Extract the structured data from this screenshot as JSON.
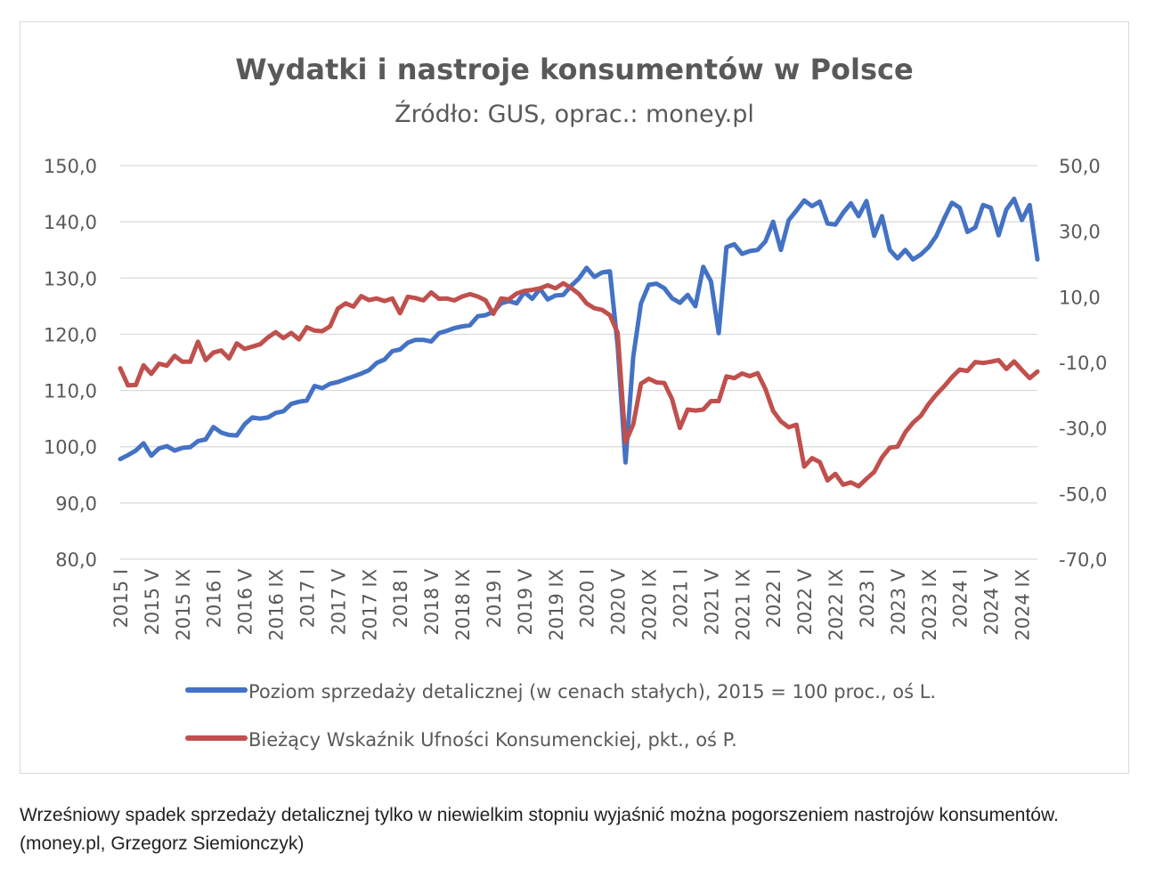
{
  "caption": "Wrześniowy spadek sprzedaży detalicznej tylko w niewielkim stopniu wyjaśnić można pogorszeniem nastrojów konsumentów. (money.pl, Grzegorz Siemionczyk)",
  "chart_data": {
    "type": "line",
    "title": "Wydatki i nastroje konsumentów w Polsce",
    "subtitle": "Źródło: GUS, oprac.: money.pl",
    "x_ticks": [
      "2015 I",
      "2015 V",
      "2015 IX",
      "2016 I",
      "2016 V",
      "2016 IX",
      "2017 I",
      "2017 V",
      "2017 IX",
      "2018 I",
      "2018 V",
      "2018 IX",
      "2019 I",
      "2019 V",
      "2019 IX",
      "2020 I",
      "2020 V",
      "2020 IX",
      "2021 I",
      "2021 V",
      "2021 IX",
      "2022 I",
      "2022 V",
      "2022 IX",
      "2023 I",
      "2023 V",
      "2023 IX",
      "2024 I",
      "2024 V",
      "2024 IX"
    ],
    "y_left": {
      "ticks": [
        "150,0",
        "140,0",
        "130,0",
        "120,0",
        "110,0",
        "100,0",
        "90,0",
        "80,0"
      ],
      "range": [
        80,
        150
      ]
    },
    "y_right": {
      "ticks": [
        "50,0",
        "30,0",
        "10,0",
        "-10,0",
        "-30,0",
        "-50,0",
        "-70,0"
      ],
      "range": [
        -70,
        50
      ]
    },
    "grid": true,
    "legend_position": "bottom",
    "series": [
      {
        "name": "Poziom sprzedaży detalicznej (w cenach stałych), 2015 = 100 proc., oś L.",
        "axis": "left",
        "color": "#4472c4",
        "values": [
          97.8,
          98.5,
          99.3,
          100.6,
          98.4,
          99.7,
          100.1,
          99.3,
          99.8,
          99.9,
          101.0,
          101.3,
          103.5,
          102.5,
          102.1,
          102.0,
          104.0,
          105.2,
          105.0,
          105.2,
          106.0,
          106.3,
          107.6,
          108.0,
          108.2,
          110.8,
          110.4,
          111.2,
          111.5,
          112.0,
          112.5,
          113.0,
          113.6,
          114.9,
          115.5,
          117.0,
          117.3,
          118.5,
          119.0,
          119.0,
          118.7,
          120.2,
          120.6,
          121.1,
          121.4,
          121.6,
          123.2,
          123.4,
          124.0,
          125.5,
          125.9,
          125.5,
          127.5,
          126.3,
          128.1,
          126.2,
          126.9,
          127.0,
          128.6,
          129.9,
          131.8,
          130.2,
          131.0,
          131.2,
          118.0,
          97.2,
          116.0,
          125.5,
          128.8,
          129.0,
          128.2,
          126.4,
          125.6,
          127.0,
          125.0,
          132.0,
          129.4,
          120.2,
          135.5,
          136.0,
          134.3,
          134.8,
          135.0,
          136.5,
          140.0,
          135.0,
          140.3,
          142.0,
          143.8,
          142.8,
          143.6,
          139.7,
          139.5,
          141.6,
          143.3,
          141.0,
          143.7,
          137.5,
          141.0,
          135.0,
          133.5,
          135.0,
          133.3,
          134.2,
          135.5,
          137.5,
          140.6,
          143.4,
          142.5,
          138.2,
          139.0,
          143.0,
          142.5,
          137.6,
          142.2,
          144.1,
          140.3,
          143.0,
          133.3
        ]
      },
      {
        "name": "Bieżący Wskaźnik Ufności Konsumenckiej, pkt., oś P.",
        "axis": "right",
        "color": "#c0504d",
        "values": [
          -11.8,
          -17.0,
          -16.9,
          -10.9,
          -13.5,
          -10.4,
          -11.0,
          -8.0,
          -9.8,
          -9.8,
          -3.7,
          -9.3,
          -7.0,
          -6.4,
          -8.8,
          -4.2,
          -5.9,
          -5.2,
          -4.5,
          -2.4,
          -0.8,
          -2.6,
          -1.0,
          -3.0,
          0.7,
          -0.3,
          -0.5,
          1.0,
          6.4,
          8.0,
          7.0,
          10.2,
          9.0,
          9.5,
          8.7,
          9.5,
          5.0,
          10.0,
          9.6,
          8.9,
          11.3,
          9.4,
          9.5,
          8.9,
          10.1,
          10.8,
          10.1,
          8.9,
          4.8,
          9.5,
          9.2,
          11.0,
          11.8,
          12.1,
          12.6,
          13.5,
          12.6,
          14.1,
          12.7,
          10.9,
          8.0,
          6.5,
          6.0,
          4.4,
          -1.0,
          -34.4,
          -28.9,
          -16.5,
          -15.0,
          -16.1,
          -16.3,
          -21.2,
          -30.0,
          -24.4,
          -24.7,
          -24.4,
          -21.8,
          -21.8,
          -14.3,
          -14.8,
          -13.4,
          -14.2,
          -13.3,
          -18.1,
          -24.8,
          -28.0,
          -29.8,
          -29.0,
          -41.8,
          -39.2,
          -40.4,
          -46.0,
          -44.0,
          -47.3,
          -46.6,
          -47.8,
          -45.5,
          -43.4,
          -39.0,
          -36.0,
          -35.7,
          -31.3,
          -28.4,
          -26.3,
          -22.7,
          -19.8,
          -17.3,
          -14.5,
          -12.2,
          -12.6,
          -9.9,
          -10.2,
          -9.8,
          -9.3,
          -12.0,
          -9.7,
          -12.3,
          -14.8,
          -12.8
        ]
      }
    ]
  }
}
